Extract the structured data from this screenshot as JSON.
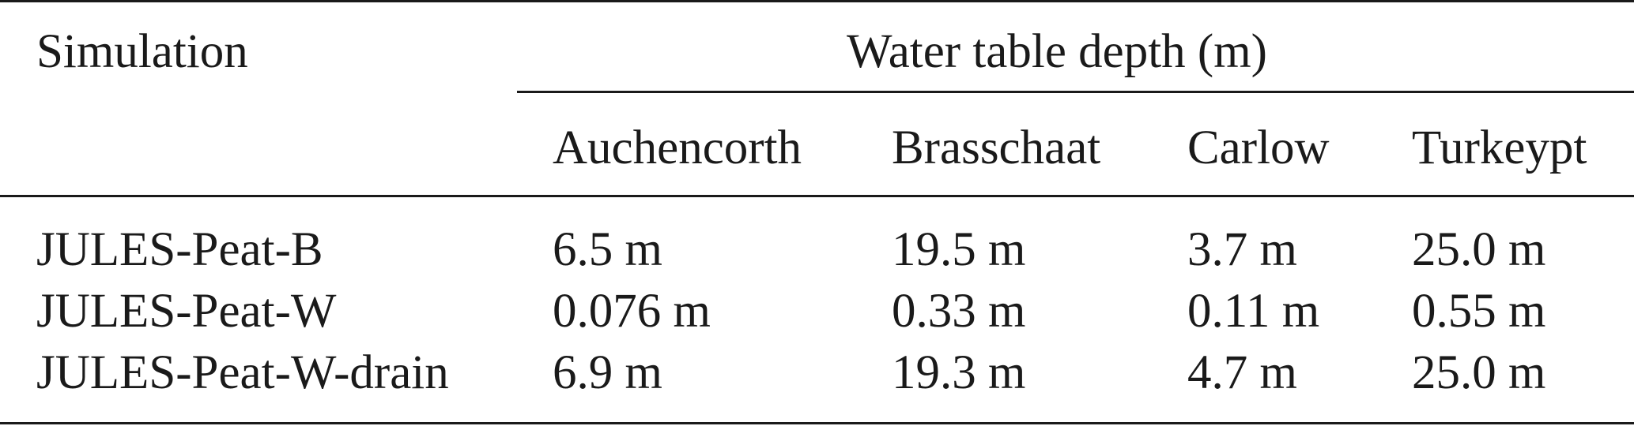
{
  "table": {
    "header": {
      "row_label": "Simulation",
      "group_label": "Water table depth (m)",
      "columns": [
        "Auchencorth",
        "Brasschaat",
        "Carlow",
        "Turkeypt"
      ]
    },
    "rows": [
      {
        "label": "JULES-Peat-B",
        "values": [
          "6.5 m",
          "19.5 m",
          "3.7 m",
          "25.0 m"
        ]
      },
      {
        "label": "JULES-Peat-W",
        "values": [
          "0.076 m",
          "0.33 m",
          "0.11 m",
          "0.55 m"
        ]
      },
      {
        "label": "JULES-Peat-W-drain",
        "values": [
          "6.9 m",
          "19.3 m",
          "4.7 m",
          "25.0 m"
        ]
      }
    ]
  }
}
